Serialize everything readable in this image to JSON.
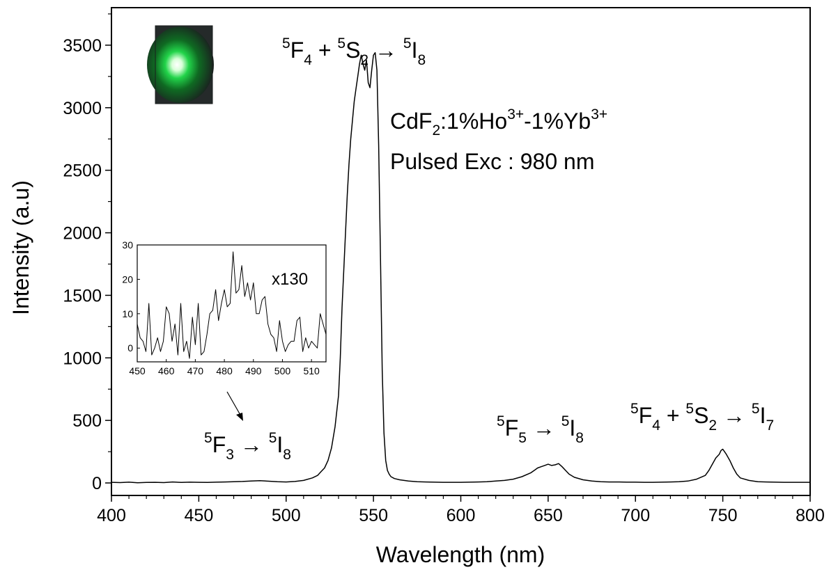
{
  "chart_data": {
    "type": "line",
    "xlabel": "Wavelength (nm)",
    "ylabel": "Intensity (a.u)",
    "xlim": [
      400,
      800
    ],
    "ylim": [
      -100,
      3800
    ],
    "xticks": [
      400,
      450,
      500,
      550,
      600,
      650,
      700,
      750,
      800
    ],
    "yticks": [
      0,
      500,
      1000,
      1500,
      2000,
      2500,
      3000,
      3500
    ],
    "grid": false,
    "legend": "none",
    "line_color": "#000000",
    "series": [
      {
        "x": [
          400,
          405,
          410,
          415,
          420,
          425,
          430,
          435,
          440,
          445,
          450,
          455,
          460,
          465,
          470,
          475,
          480,
          485,
          490,
          495,
          500,
          505,
          510,
          515,
          518,
          520,
          522,
          524,
          526,
          528,
          530,
          531,
          532,
          533,
          534,
          535,
          536,
          537,
          538,
          539,
          540,
          541,
          542,
          543,
          544,
          545,
          546,
          547,
          548,
          549,
          550,
          551,
          552,
          553,
          554,
          555,
          556,
          557,
          558,
          559,
          560,
          562,
          565,
          570,
          575,
          580,
          585,
          590,
          595,
          600,
          605,
          610,
          615,
          620,
          625,
          630,
          635,
          640,
          642,
          644,
          646,
          648,
          650,
          652,
          654,
          656,
          658,
          660,
          662,
          665,
          670,
          675,
          680,
          685,
          690,
          695,
          700,
          705,
          710,
          715,
          720,
          725,
          730,
          735,
          740,
          742,
          744,
          746,
          748,
          749,
          750,
          751,
          752,
          754,
          756,
          758,
          760,
          765,
          770,
          775,
          780,
          785,
          790,
          795,
          800
        ],
        "y": [
          5,
          3,
          6,
          2,
          4,
          5,
          3,
          8,
          4,
          6,
          5,
          4,
          6,
          8,
          10,
          12,
          15,
          18,
          14,
          10,
          8,
          12,
          20,
          40,
          60,
          90,
          120,
          180,
          280,
          450,
          700,
          1000,
          1400,
          1700,
          2000,
          2300,
          2550,
          2750,
          2900,
          3050,
          3150,
          3250,
          3350,
          3420,
          3350,
          3300,
          3380,
          3200,
          3160,
          3300,
          3420,
          3440,
          3300,
          2700,
          1800,
          900,
          400,
          180,
          100,
          70,
          50,
          35,
          25,
          15,
          10,
          8,
          6,
          5,
          5,
          5,
          6,
          8,
          10,
          15,
          20,
          30,
          50,
          80,
          100,
          120,
          130,
          140,
          150,
          140,
          145,
          155,
          130,
          100,
          70,
          45,
          25,
          15,
          10,
          8,
          8,
          6,
          6,
          5,
          5,
          6,
          8,
          10,
          15,
          30,
          60,
          100,
          150,
          200,
          230,
          260,
          270,
          250,
          230,
          180,
          120,
          70,
          40,
          20,
          10,
          8,
          6,
          5,
          5,
          5,
          5
        ]
      }
    ],
    "annotations": {
      "main_peak": {
        "l1": "5",
        "l2": "F",
        "l3": "4",
        "l4": " + ",
        "l5": "5",
        "l6": "S",
        "l7": "2",
        "l8": " → ",
        "l9": "5",
        "l10": "I",
        "l11": "8"
      },
      "sample": {
        "p1": "CdF",
        "p2": "2",
        "p3": ":1%Ho",
        "p4": "3+",
        "p5": "-1%Yb",
        "p6": "3+"
      },
      "excitation": "Pulsed Exc : 980 nm",
      "blue_band": {
        "l1": "5",
        "l2": "F",
        "l3": "3",
        "l4": "  → ",
        "l5": "5",
        "l6": "I",
        "l7": "8"
      },
      "red_band": {
        "l1": "5",
        "l2": "F",
        "l3": "5",
        "l4": " → ",
        "l5": "5",
        "l6": "I",
        "l7": "8"
      },
      "nir_band": {
        "l1": "5",
        "l2": "F",
        "l3": "4",
        "l4": " + ",
        "l5": "5",
        "l6": "S",
        "l7": "2",
        "l8": " → ",
        "l9": "5",
        "l10": "I",
        "l11": "7"
      }
    },
    "inset": {
      "type": "line",
      "xlim": [
        450,
        515
      ],
      "ylim": [
        -4,
        30
      ],
      "xticks": [
        450,
        460,
        470,
        480,
        490,
        500,
        510
      ],
      "yticks": [
        0,
        10,
        20,
        30
      ],
      "annotation": "x130",
      "series": [
        {
          "x": [
            450,
            451,
            452,
            453,
            454,
            455,
            456,
            457,
            458,
            459,
            460,
            461,
            462,
            463,
            464,
            465,
            466,
            467,
            468,
            469,
            470,
            471,
            472,
            473,
            474,
            475,
            476,
            477,
            478,
            479,
            480,
            481,
            482,
            483,
            484,
            485,
            486,
            487,
            488,
            489,
            490,
            491,
            492,
            493,
            494,
            495,
            496,
            497,
            498,
            499,
            500,
            501,
            502,
            503,
            504,
            505,
            506,
            507,
            508,
            509,
            510,
            511,
            512,
            513,
            514,
            515
          ],
          "y": [
            7,
            3,
            2,
            -1,
            13,
            -2,
            0,
            3,
            -1,
            2,
            12,
            10,
            2,
            7,
            -2,
            13,
            -1,
            2,
            -3,
            9,
            1,
            13,
            -2,
            -1,
            4,
            10,
            11,
            17,
            8,
            13,
            17,
            12,
            13,
            28,
            16,
            17,
            24,
            15,
            19,
            14,
            19,
            10,
            10,
            14,
            15,
            7,
            4,
            3,
            -1,
            8,
            2,
            -1,
            1,
            2,
            2,
            8,
            9,
            -1,
            3,
            0,
            2,
            1,
            0,
            10,
            7,
            4
          ]
        }
      ]
    }
  }
}
